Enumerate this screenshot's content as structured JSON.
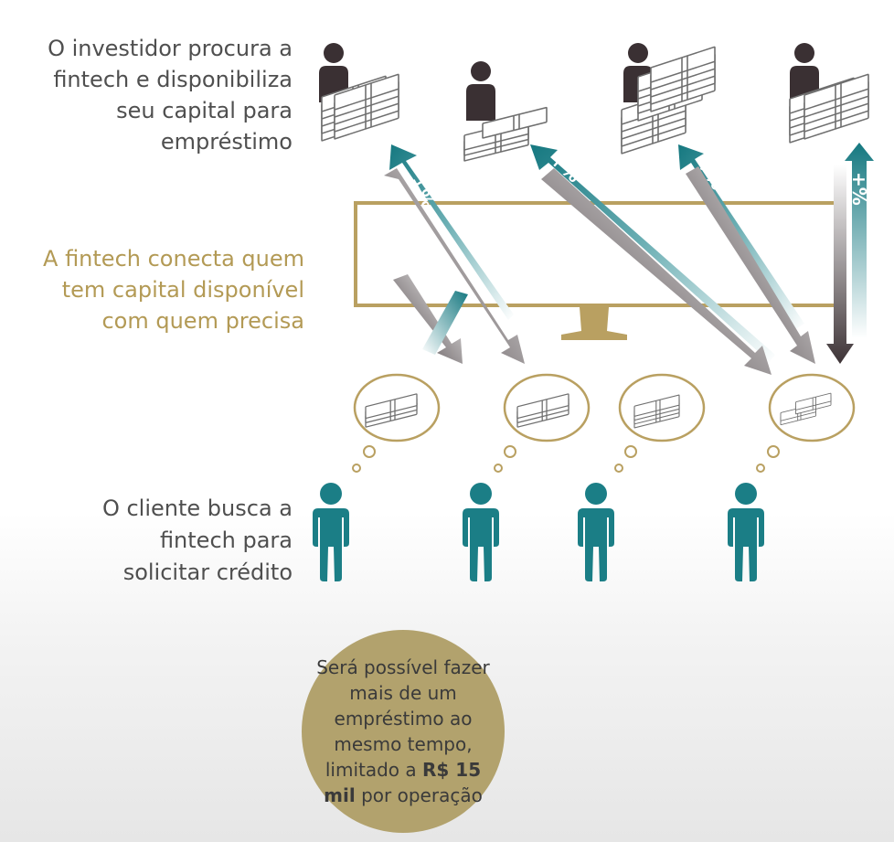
{
  "investor_text": "O investidor  procura a\nfintech e disponibiliza\nseu capital para\nempréstimo",
  "fintech_text": "A fintech conecta quem\ntem capital disponível\ncom quem precisa",
  "client_text": "O cliente busca a\nfintech para\nsolicitar crédito",
  "circle": {
    "line1": "Será possível fazer mais de um empréstimo ao mesmo tempo, limitado a ",
    "highlight": "R$ 15 mil",
    "line2": " por operação"
  },
  "arrow_label": "+%",
  "colors": {
    "teal": "#1b7e86",
    "gold": "#b9a061",
    "dark": "#3c3234",
    "text_gray": "#4f4f4f"
  }
}
